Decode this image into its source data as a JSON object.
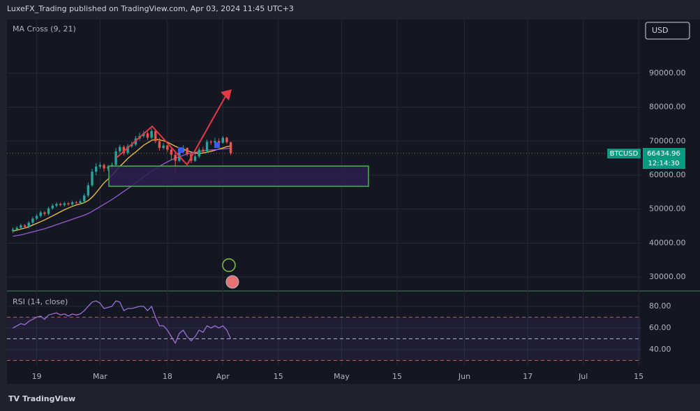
{
  "header": "LuxeFX_Trading published on TradingView.com, Apr 03, 2024 11:45 UTC+3",
  "currency_button": "USD",
  "symbol": "BTCUSD",
  "countdown": "12:14:30",
  "footer": "TradingView",
  "chart_data": [
    {
      "type": "candlestick",
      "title": "MA Cross (9, 21)",
      "x": [
        -22,
        -21,
        -20,
        -19,
        -18,
        -17,
        -16,
        -15,
        -14,
        -13,
        -12,
        -11,
        -10,
        -9,
        -8,
        -7,
        -6,
        -5,
        -4,
        -3,
        -2,
        -1,
        0,
        1,
        2,
        3,
        4,
        5,
        6,
        7,
        8,
        9,
        10,
        11,
        12,
        13,
        14,
        15,
        16,
        17,
        18,
        19,
        20,
        21,
        22,
        23,
        24,
        25,
        26,
        27,
        28,
        29,
        30,
        31,
        32,
        33
      ],
      "open": [
        43600,
        44000,
        44500,
        45200,
        44800,
        46000,
        47200,
        48000,
        49000,
        48600,
        50200,
        51000,
        51500,
        51200,
        51700,
        51400,
        52000,
        51800,
        52300,
        54000,
        57000,
        61000,
        62500,
        63000,
        62000,
        62400,
        63000,
        67000,
        68300,
        66500,
        68500,
        69000,
        70800,
        71500,
        72300,
        71000,
        73000,
        70000,
        68000,
        68700,
        67500,
        66000,
        64200,
        66800,
        68000,
        66200,
        64200,
        65500,
        67500,
        67000,
        69800,
        69600,
        70000,
        69500,
        71000,
        69700
      ],
      "high": [
        44600,
        45000,
        45700,
        45600,
        46500,
        47800,
        48600,
        49500,
        49400,
        50700,
        51600,
        52000,
        51900,
        52200,
        52100,
        52500,
        52400,
        52900,
        54600,
        57800,
        61800,
        63500,
        63800,
        63400,
        63000,
        63700,
        68000,
        69000,
        68800,
        69200,
        69800,
        71500,
        72500,
        73000,
        72800,
        73800,
        73400,
        71000,
        69500,
        68900,
        68200,
        67000,
        67300,
        68800,
        68200,
        66500,
        66400,
        68200,
        68300,
        70500,
        70300,
        71000,
        70800,
        71500,
        71300,
        69800
      ],
      "low": [
        43000,
        43500,
        44000,
        44300,
        44300,
        45500,
        46800,
        47500,
        48000,
        48200,
        49800,
        50500,
        50800,
        50700,
        51000,
        50900,
        51200,
        51300,
        51800,
        53500,
        56500,
        60000,
        61800,
        61000,
        61300,
        61800,
        62500,
        66500,
        65800,
        66000,
        68000,
        68500,
        70200,
        71000,
        70300,
        70500,
        69400,
        67200,
        67500,
        66800,
        64500,
        60800,
        63800,
        66300,
        65600,
        63500,
        63900,
        65000,
        66500,
        66600,
        68900,
        69200,
        68900,
        69300,
        69200,
        65900
      ],
      "close": [
        44000,
        44500,
        45200,
        44800,
        46000,
        47200,
        48000,
        49000,
        48600,
        50200,
        51000,
        51500,
        51200,
        51700,
        51400,
        52000,
        51800,
        52300,
        54000,
        57000,
        61000,
        62500,
        63000,
        62000,
        62400,
        63000,
        67000,
        68300,
        66500,
        68500,
        69000,
        70800,
        71500,
        72300,
        71000,
        73000,
        70000,
        68000,
        68700,
        67500,
        66000,
        64200,
        66800,
        68000,
        66200,
        64200,
        65500,
        67500,
        67000,
        69800,
        69600,
        70000,
        69500,
        71000,
        69700,
        66434.96
      ],
      "up_color": "#26a69a",
      "down_color": "#ef5350",
      "series": [
        {
          "color": "#f5c242",
          "values": [
            43500,
            43800,
            44100,
            44400,
            44800,
            45300,
            45800,
            46300,
            46800,
            47400,
            48000,
            48600,
            49200,
            49800,
            50300,
            50800,
            51200,
            51500,
            51900,
            52500,
            53500,
            54800,
            56300,
            57700,
            58800,
            59900,
            61200,
            62600,
            63700,
            64900,
            65900,
            66800,
            67800,
            68800,
            69500,
            70200,
            70500,
            70400,
            70100,
            69700,
            69100,
            68500,
            68000,
            67600,
            67200,
            66800,
            66500,
            66400,
            66500,
            66700,
            67000,
            67300,
            67700,
            68000,
            68400,
            68600
          ]
        },
        {
          "color": "#9b59d0",
          "values": [
            42000,
            42200,
            42400,
            42700,
            43000,
            43300,
            43600,
            43900,
            44200,
            44600,
            45000,
            45400,
            45800,
            46200,
            46600,
            47000,
            47400,
            47800,
            48200,
            48700,
            49300,
            50000,
            50700,
            51400,
            52100,
            52800,
            53600,
            54400,
            55200,
            56000,
            56800,
            57700,
            58600,
            59500,
            60300,
            61100,
            61900,
            62600,
            63300,
            63900,
            64500,
            65000,
            65400,
            65800,
            66200,
            66500,
            66700,
            66900,
            67100,
            67300,
            67400,
            67500,
            67600,
            67700,
            67800,
            67900
          ]
        }
      ],
      "xlim": [
        -23.5,
        136.5
      ],
      "xticks": [
        {
          "value": -16,
          "label": "19"
        },
        {
          "value": 0,
          "label": "Mar"
        },
        {
          "value": 17,
          "label": "18"
        },
        {
          "value": 31,
          "label": "Apr"
        },
        {
          "value": 45,
          "label": "15"
        },
        {
          "value": 61,
          "label": "May"
        },
        {
          "value": 75,
          "label": "15"
        },
        {
          "value": 92,
          "label": "Jun"
        },
        {
          "value": 108,
          "label": "17"
        },
        {
          "value": 122,
          "label": "Jul"
        },
        {
          "value": 136,
          "label": "15"
        }
      ],
      "ylim": [
        26100,
        105800
      ],
      "yticks": [
        {
          "value": 30000,
          "label": "30000.00"
        },
        {
          "value": 40000,
          "label": "40000.00"
        },
        {
          "value": 50000,
          "label": "50000.00"
        },
        {
          "value": 60000,
          "label": "60000.00"
        },
        {
          "value": 70000,
          "label": "70000.00"
        },
        {
          "value": 80000,
          "label": "80000.00"
        },
        {
          "value": 90000,
          "label": "90000.00"
        }
      ],
      "grid": true
    },
    {
      "type": "line",
      "title": "RSI (14, close)",
      "series": [
        {
          "color": "#9b6fd6",
          "values": [
            60,
            62,
            64,
            63,
            66,
            68,
            70,
            71,
            68,
            72,
            73,
            74,
            72,
            73,
            71,
            73,
            72,
            73,
            76,
            80,
            84,
            85,
            83,
            78,
            79,
            80,
            85,
            84,
            76,
            78,
            78,
            79,
            80,
            80,
            76,
            80,
            70,
            62,
            62,
            58,
            52,
            46,
            55,
            58,
            52,
            48,
            52,
            58,
            56,
            62,
            60,
            62,
            60,
            62,
            58,
            50
          ]
        }
      ],
      "levels": [
        30,
        50,
        70
      ],
      "ylim": [
        24.5,
        92.3
      ],
      "yticks": [
        {
          "value": 40,
          "label": "40.00"
        },
        {
          "value": 60,
          "label": "60.00"
        },
        {
          "value": 80,
          "label": "80.00"
        }
      ],
      "grid": true
    }
  ]
}
